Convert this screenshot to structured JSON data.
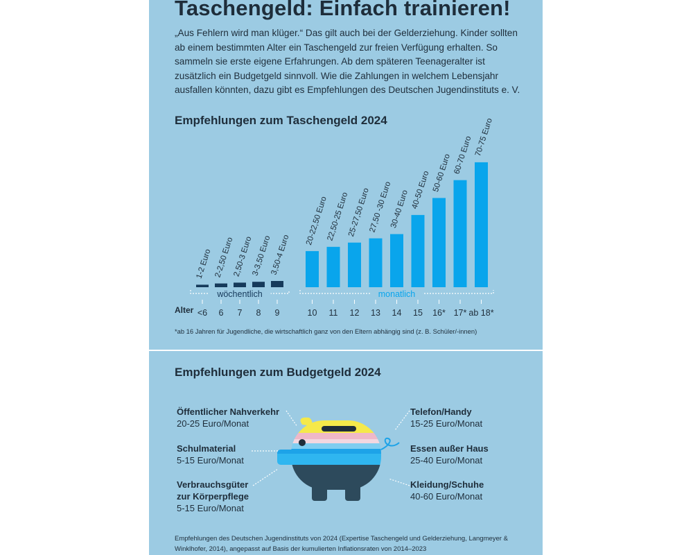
{
  "header": {
    "title": "Taschengeld: Einfach trainieren!",
    "intro": "„Aus Fehlern wird man klüger.“ Das gilt auch bei der Gelderziehung. Kinder sollten ab einem bestimmten Alter ein Taschengeld zur freien Verfügung erhalten. So sammeln sie erste eigene Erfahrungen. Ab dem späteren Teenageralter ist zusätzlich ein Budgetgeld sinnvoll. Wie die Zahlungen in welchem Lebensjahr ausfallen könnten, dazu gibt es Empfehlungen des Deutschen Jugendinstituts e. V."
  },
  "colors": {
    "panel": "#9ccbe3",
    "weekly_bar": "#163a5b",
    "monthly_bar": "#09a5ec",
    "text": "#1e2d3a",
    "pig_yellow": "#f5e94a",
    "pig_pink": "#efb8c8",
    "pig_blue": "#1da3e8",
    "pig_navy": "#2d4a5c"
  },
  "chart_data": {
    "type": "bar",
    "title": "Empfehlungen zum Taschengeld 2024",
    "xlabel": "Alter",
    "ylabel": "Euro",
    "footnote": "*ab 16 Jahren für Jugendliche, die wirtschaftlich ganz von den Eltern abhängig sind (z. B. Schüler/-innen)",
    "groups": [
      {
        "name": "wöchentlich",
        "unit": "Euro pro Woche",
        "categories": [
          "<6",
          "6",
          "7",
          "8",
          "9"
        ],
        "labels": [
          "1-2 Euro",
          "2-2,50 Euro",
          "2,50-3 Euro",
          "3-3,50 Euro",
          "3,50-4 Euro"
        ],
        "values": [
          1.5,
          2.25,
          2.75,
          3.25,
          3.75
        ]
      },
      {
        "name": "monatlich",
        "unit": "Euro pro Monat",
        "categories": [
          "10",
          "11",
          "12",
          "13",
          "14",
          "15",
          "16*",
          "17*",
          "ab 18*"
        ],
        "labels": [
          "20-22,50 Euro",
          "22,50-25 Euro",
          "25-27,50 Euro",
          "27,50 -30 Euro",
          "30-40 Euro",
          "40-50 Euro",
          "50-60 Euro",
          "60-70 Euro",
          "70-75 Euro"
        ],
        "values": [
          21.25,
          23.75,
          26.25,
          28.75,
          31.25,
          42.5,
          52.5,
          63,
          73.5
        ]
      }
    ]
  },
  "budget": {
    "title": "Empfehlungen zum Budgetgeld 2024",
    "left": [
      {
        "label": "Öffentlicher Nahverkehr",
        "value": "20-25 Euro/Monat"
      },
      {
        "label": "Schulmaterial",
        "value": "5-15 Euro/Monat"
      },
      {
        "label": "Verbrauchsgüter",
        "label2": "zur Körperpflege",
        "value": "5-15 Euro/Monat"
      }
    ],
    "right": [
      {
        "label": "Telefon/Handy",
        "value": "15-25 Euro/Monat"
      },
      {
        "label": "Essen außer Haus",
        "value": "25-40 Euro/Monat"
      },
      {
        "label": "Kleidung/Schuhe",
        "value": "40-60 Euro/Monat"
      }
    ]
  },
  "source": "Empfehlungen des Deutschen Jugendinstituts von 2024 (Expertise Taschengeld und Gelderziehung, Langmeyer & Winklhofer, 2014), angepasst auf Basis der kumulierten Inflationsraten von 2014–2023"
}
